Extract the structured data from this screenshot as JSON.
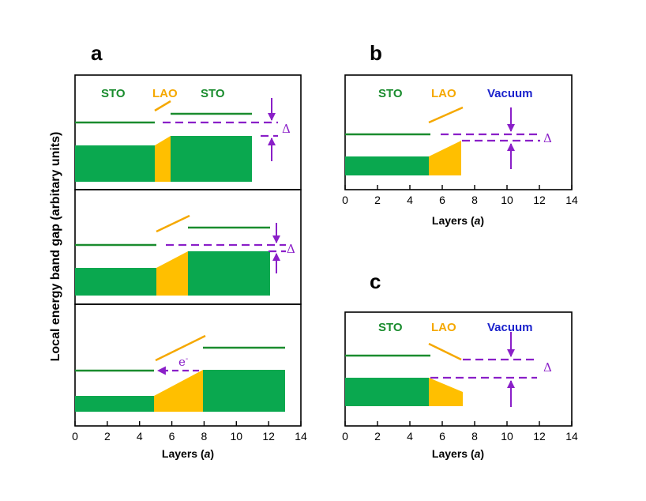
{
  "colors": {
    "sto": "#1a8c2e",
    "sto_fill": "#0aa84f",
    "lao": "#f5a800",
    "lao_fill": "#ffbf00",
    "vacuum": "#1b22cc",
    "arrow": "#8a1fc8"
  },
  "ylabel": "Local energy band gap (arbitary units)",
  "xlabel_main": "Layers (",
  "xlabel_unit": "a",
  "xlabel_close": ")",
  "labels": {
    "sto": "STO",
    "lao": "LAO",
    "vacuum": "Vacuum",
    "delta": "Δ",
    "electron": "e",
    "electron_sup": "-"
  },
  "panels": [
    {
      "id": "a",
      "letter": "a"
    },
    {
      "id": "b",
      "letter": "b"
    },
    {
      "id": "c",
      "letter": "c"
    }
  ],
  "ticks": [
    "0",
    "2",
    "4",
    "6",
    "8",
    "10",
    "12",
    "14"
  ],
  "chart_data": [
    {
      "panel": "a-top",
      "type": "band-diagram",
      "xlim": [
        0,
        14
      ],
      "layers": [
        {
          "material": "STO",
          "from": 0,
          "to": 5
        },
        {
          "material": "LAO",
          "from": 5,
          "to": 6
        },
        {
          "material": "STO",
          "from": 6,
          "to": 11
        }
      ],
      "annotation": "Δ"
    },
    {
      "panel": "a-middle",
      "type": "band-diagram",
      "xlim": [
        0,
        14
      ],
      "layers": [
        {
          "material": "STO",
          "from": 0,
          "to": 5
        },
        {
          "material": "LAO",
          "from": 5,
          "to": 7
        },
        {
          "material": "STO",
          "from": 7,
          "to": 12
        }
      ],
      "annotation": "Δ"
    },
    {
      "panel": "a-bottom",
      "type": "band-diagram",
      "xlim": [
        0,
        14
      ],
      "layers": [
        {
          "material": "STO",
          "from": 0,
          "to": 5
        },
        {
          "material": "LAO",
          "from": 5,
          "to": 8
        },
        {
          "material": "STO",
          "from": 8,
          "to": 13
        }
      ],
      "annotation": "e-"
    },
    {
      "panel": "b",
      "type": "band-diagram",
      "xlim": [
        0,
        14
      ],
      "layers": [
        {
          "material": "STO",
          "from": 0,
          "to": 5
        },
        {
          "material": "LAO",
          "from": 5,
          "to": 7
        },
        {
          "material": "Vacuum",
          "from": 7,
          "to": 12
        }
      ],
      "annotation": "Δ"
    },
    {
      "panel": "c",
      "type": "band-diagram",
      "xlim": [
        0,
        14
      ],
      "layers": [
        {
          "material": "STO",
          "from": 0,
          "to": 5
        },
        {
          "material": "LAO",
          "from": 5,
          "to": 7
        },
        {
          "material": "Vacuum",
          "from": 7,
          "to": 12
        }
      ],
      "annotation": "Δ"
    }
  ]
}
